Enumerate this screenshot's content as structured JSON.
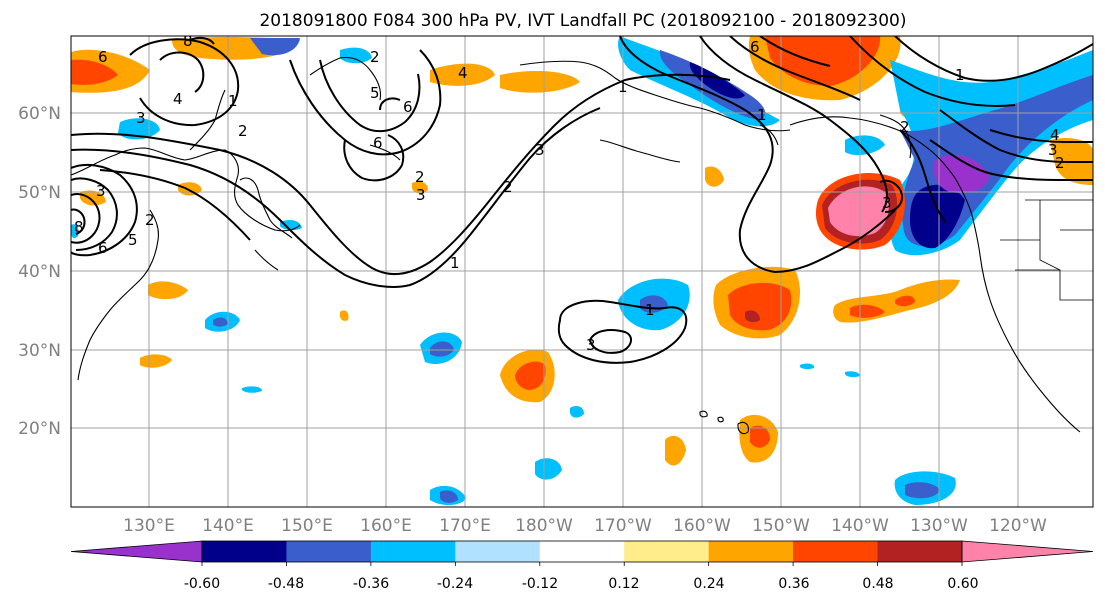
{
  "title": "2018091800 F084 300 hPa PV, IVT Landfall PC (2018092100 - 2018092300)",
  "map": {
    "lat_labels": [
      "60°N",
      "50°N",
      "40°N",
      "30°N",
      "20°N"
    ],
    "lon_labels": [
      "130°E",
      "140°E",
      "150°E",
      "160°E",
      "170°E",
      "180°W",
      "170°W",
      "160°W",
      "150°W",
      "140°W",
      "130°W",
      "120°W"
    ],
    "contour_labels": [
      "6",
      "8",
      "4",
      "3",
      "2",
      "6",
      "1",
      "5",
      "6",
      "1",
      "2",
      "3",
      "2",
      "1",
      "4",
      "2",
      "3",
      "6",
      "1",
      "2",
      "3",
      "1",
      "4",
      "3",
      "2",
      "8",
      "6",
      "5",
      "3",
      "2",
      "1",
      "3"
    ]
  },
  "colorbar": {
    "tick_labels": [
      "-0.60",
      "-0.48",
      "-0.36",
      "-0.24",
      "-0.12",
      "0.12",
      "0.24",
      "0.36",
      "0.48",
      "0.60"
    ],
    "colors": [
      "#9932cc",
      "#00008b",
      "#3a5fcd",
      "#00bfff",
      "#b0e2ff",
      "#ffffff",
      "#ffec8b",
      "#ffa500",
      "#ff4500",
      "#b22222",
      "#ff82ab"
    ]
  }
}
